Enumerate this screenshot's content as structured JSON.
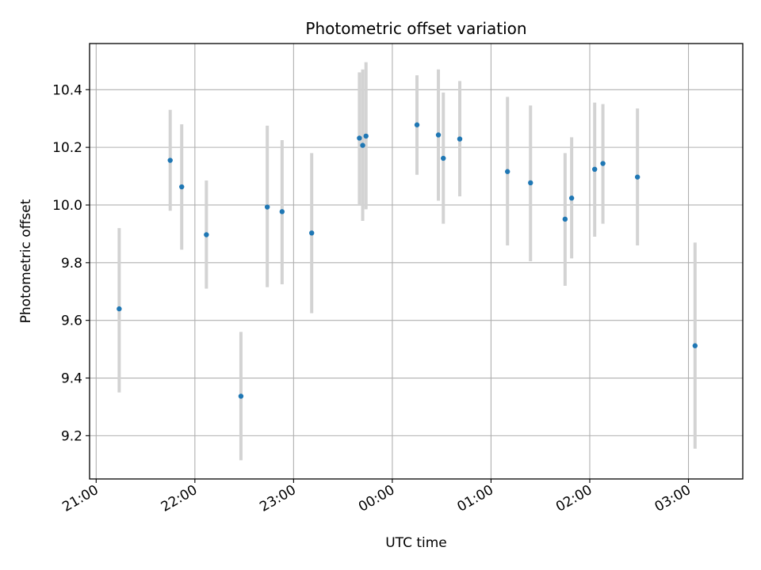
{
  "chart_data": {
    "type": "scatter",
    "title": "Photometric offset variation",
    "xlabel": "UTC time",
    "ylabel": "Photometric offset",
    "x_axis": {
      "kind": "time",
      "ticks": [
        "21:00",
        "22:00",
        "23:00",
        "00:00",
        "01:00",
        "02:00",
        "03:00"
      ],
      "range": [
        "20:56",
        "03:33"
      ]
    },
    "y_axis": {
      "ticks": [
        "9.2",
        "9.4",
        "9.6",
        "9.8",
        "10.0",
        "10.2",
        "10.4"
      ],
      "range": [
        9.05,
        10.56
      ]
    },
    "grid": true,
    "marker_color": "#1f77b4",
    "errorbar_color": "#d3d3d3",
    "series": [
      {
        "x": [
          "21:14",
          "21:45",
          "21:52",
          "22:07",
          "22:28",
          "22:44",
          "22:53",
          "23:11",
          "23:40",
          "23:42",
          "23:44",
          "00:15",
          "00:28",
          "00:31",
          "00:41",
          "01:10",
          "01:24",
          "01:45",
          "01:49",
          "02:03",
          "02:08",
          "02:29",
          "03:04"
        ],
        "y": [
          9.64,
          10.155,
          10.063,
          9.897,
          9.337,
          9.993,
          9.977,
          9.903,
          10.232,
          10.207,
          10.239,
          10.278,
          10.243,
          10.162,
          10.229,
          10.116,
          10.077,
          9.951,
          10.024,
          10.124,
          10.144,
          10.097,
          9.512
        ],
        "yerr_low": [
          9.35,
          9.98,
          9.845,
          9.71,
          9.115,
          9.715,
          9.725,
          9.625,
          10.0,
          9.945,
          9.985,
          10.105,
          10.015,
          9.935,
          10.03,
          9.86,
          9.805,
          9.72,
          9.815,
          9.89,
          9.935,
          9.86,
          9.155
        ],
        "yerr_high": [
          9.92,
          10.33,
          10.28,
          10.085,
          9.56,
          10.275,
          10.225,
          10.18,
          10.46,
          10.47,
          10.495,
          10.45,
          10.47,
          10.39,
          10.43,
          10.375,
          10.345,
          10.18,
          10.235,
          10.355,
          10.35,
          10.335,
          9.87
        ]
      }
    ]
  }
}
